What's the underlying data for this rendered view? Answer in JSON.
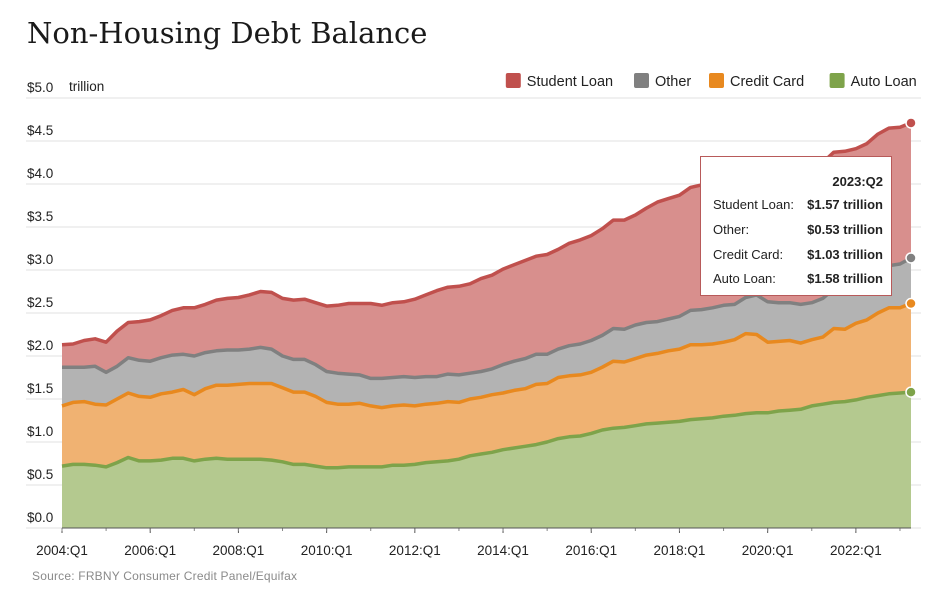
{
  "title": "Non-Housing Debt Balance",
  "source": "Source: FRBNY Consumer Credit Panel/Equifax",
  "chart_data": {
    "type": "area",
    "stacked": true,
    "unit_label": "trillion",
    "ylim": [
      0,
      5
    ],
    "yticks": [
      "$0.0",
      "$0.5",
      "$1.0",
      "$1.5",
      "$2.0",
      "$2.5",
      "$3.0",
      "$3.5",
      "$4.0",
      "$4.5",
      "$5.0"
    ],
    "xticks": [
      "2004:Q1",
      "2006:Q1",
      "2008:Q1",
      "2010:Q1",
      "2012:Q1",
      "2014:Q1",
      "2016:Q1",
      "2018:Q1",
      "2020:Q1",
      "2022:Q1"
    ],
    "x_range": [
      "2004:Q1",
      "2023:Q2"
    ],
    "grid": "horizontal",
    "legend_position": "top-right",
    "legend": [
      "Student Loan",
      "Other",
      "Credit Card",
      "Auto Loan"
    ],
    "series": [
      {
        "name": "Auto Loan",
        "color": "#7ea34a",
        "fill": "#b4c98f",
        "values": [
          0.72,
          0.74,
          0.74,
          0.73,
          0.71,
          0.76,
          0.82,
          0.78,
          0.78,
          0.79,
          0.81,
          0.81,
          0.78,
          0.8,
          0.81,
          0.8,
          0.8,
          0.8,
          0.8,
          0.79,
          0.77,
          0.74,
          0.74,
          0.72,
          0.7,
          0.7,
          0.71,
          0.71,
          0.71,
          0.71,
          0.73,
          0.73,
          0.74,
          0.76,
          0.77,
          0.78,
          0.8,
          0.84,
          0.86,
          0.88,
          0.91,
          0.93,
          0.95,
          0.97,
          1.0,
          1.04,
          1.06,
          1.07,
          1.1,
          1.14,
          1.16,
          1.17,
          1.19,
          1.21,
          1.22,
          1.23,
          1.24,
          1.26,
          1.27,
          1.28,
          1.3,
          1.31,
          1.33,
          1.34,
          1.34,
          1.36,
          1.37,
          1.38,
          1.42,
          1.44,
          1.46,
          1.47,
          1.49,
          1.52,
          1.54,
          1.56,
          1.57,
          1.58
        ]
      },
      {
        "name": "Credit Card",
        "color": "#e8891f",
        "fill": "#f0b272",
        "values": [
          0.7,
          0.72,
          0.73,
          0.71,
          0.72,
          0.74,
          0.75,
          0.75,
          0.74,
          0.77,
          0.77,
          0.8,
          0.77,
          0.82,
          0.85,
          0.86,
          0.87,
          0.88,
          0.88,
          0.89,
          0.86,
          0.84,
          0.84,
          0.81,
          0.76,
          0.74,
          0.73,
          0.74,
          0.71,
          0.69,
          0.69,
          0.7,
          0.68,
          0.68,
          0.68,
          0.69,
          0.66,
          0.66,
          0.66,
          0.67,
          0.66,
          0.67,
          0.67,
          0.7,
          0.68,
          0.71,
          0.71,
          0.71,
          0.71,
          0.73,
          0.78,
          0.76,
          0.78,
          0.8,
          0.81,
          0.83,
          0.84,
          0.87,
          0.86,
          0.86,
          0.86,
          0.88,
          0.93,
          0.91,
          0.82,
          0.81,
          0.81,
          0.77,
          0.77,
          0.78,
          0.86,
          0.84,
          0.89,
          0.9,
          0.96,
          1.0,
          0.99,
          1.03
        ]
      },
      {
        "name": "Other",
        "color": "#808080",
        "fill": "#b3b3b3",
        "values": [
          0.45,
          0.41,
          0.4,
          0.44,
          0.38,
          0.38,
          0.41,
          0.42,
          0.42,
          0.42,
          0.43,
          0.41,
          0.45,
          0.42,
          0.4,
          0.41,
          0.4,
          0.4,
          0.42,
          0.4,
          0.37,
          0.38,
          0.38,
          0.37,
          0.36,
          0.36,
          0.35,
          0.33,
          0.32,
          0.34,
          0.33,
          0.33,
          0.33,
          0.32,
          0.31,
          0.32,
          0.32,
          0.3,
          0.3,
          0.3,
          0.33,
          0.34,
          0.35,
          0.35,
          0.34,
          0.33,
          0.35,
          0.36,
          0.37,
          0.37,
          0.38,
          0.38,
          0.39,
          0.38,
          0.37,
          0.37,
          0.38,
          0.4,
          0.41,
          0.42,
          0.43,
          0.41,
          0.42,
          0.46,
          0.47,
          0.45,
          0.44,
          0.45,
          0.43,
          0.45,
          0.46,
          0.46,
          0.44,
          0.46,
          0.49,
          0.49,
          0.51,
          0.53
        ]
      },
      {
        "name": "Student Loan",
        "color": "#c0504d",
        "fill": "#d88f8d",
        "values": [
          0.26,
          0.27,
          0.31,
          0.32,
          0.35,
          0.41,
          0.41,
          0.45,
          0.48,
          0.49,
          0.52,
          0.54,
          0.56,
          0.56,
          0.59,
          0.6,
          0.61,
          0.63,
          0.65,
          0.66,
          0.67,
          0.69,
          0.7,
          0.72,
          0.76,
          0.79,
          0.82,
          0.83,
          0.87,
          0.85,
          0.87,
          0.87,
          0.91,
          0.95,
          1.0,
          1.01,
          1.03,
          1.04,
          1.08,
          1.09,
          1.11,
          1.12,
          1.14,
          1.14,
          1.16,
          1.16,
          1.19,
          1.21,
          1.22,
          1.24,
          1.26,
          1.27,
          1.28,
          1.33,
          1.39,
          1.4,
          1.41,
          1.43,
          1.45,
          1.5,
          1.52,
          1.54,
          1.56,
          1.57,
          1.58,
          1.58,
          1.58,
          1.58,
          1.59,
          1.58,
          1.59,
          1.61,
          1.59,
          1.59,
          1.59,
          1.6,
          1.59,
          1.57
        ]
      }
    ]
  },
  "tooltip": {
    "period": "2023:Q2",
    "rows": [
      {
        "label": "Student Loan:",
        "value": "$1.57 trillion"
      },
      {
        "label": "Other:",
        "value": "$0.53 trillion"
      },
      {
        "label": "Credit Card:",
        "value": "$1.03 trillion"
      },
      {
        "label": "Auto Loan:",
        "value": "$1.58 trillion"
      }
    ]
  }
}
